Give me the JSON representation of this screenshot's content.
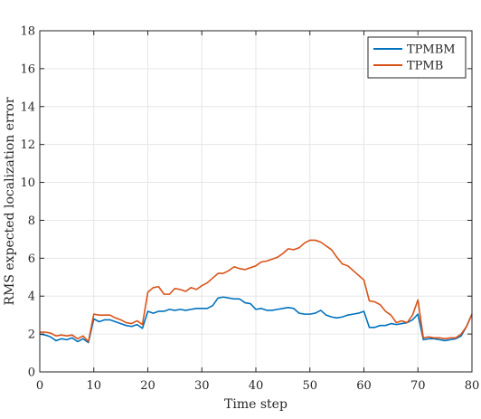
{
  "chart_data": {
    "type": "line",
    "xlabel": "Time step",
    "ylabel": "RMS expected localization error",
    "xlim": [
      0,
      80
    ],
    "ylim": [
      0,
      18
    ],
    "xticks": [
      0,
      10,
      20,
      30,
      40,
      50,
      60,
      70,
      80
    ],
    "yticks": [
      0,
      2,
      4,
      6,
      8,
      10,
      12,
      14,
      16,
      18
    ],
    "grid": true,
    "legend_position": "top-right",
    "series": [
      {
        "name": "TPMBM",
        "color": "#0072BD",
        "x": [
          0,
          1,
          2,
          3,
          4,
          5,
          6,
          7,
          8,
          9,
          10,
          11,
          12,
          13,
          14,
          15,
          16,
          17,
          18,
          19,
          20,
          21,
          22,
          23,
          24,
          25,
          26,
          27,
          28,
          29,
          30,
          31,
          32,
          33,
          34,
          35,
          36,
          37,
          38,
          39,
          40,
          41,
          42,
          43,
          44,
          45,
          46,
          47,
          48,
          49,
          50,
          51,
          52,
          53,
          54,
          55,
          56,
          57,
          58,
          59,
          60,
          61,
          62,
          63,
          64,
          65,
          66,
          67,
          68,
          69,
          70,
          71,
          72,
          73,
          74,
          75,
          76,
          77,
          78,
          79,
          80
        ],
        "y": [
          2.0,
          1.95,
          1.85,
          1.65,
          1.75,
          1.7,
          1.8,
          1.6,
          1.75,
          1.55,
          2.8,
          2.65,
          2.75,
          2.75,
          2.65,
          2.55,
          2.45,
          2.4,
          2.5,
          2.3,
          3.2,
          3.1,
          3.2,
          3.2,
          3.3,
          3.25,
          3.3,
          3.25,
          3.3,
          3.35,
          3.35,
          3.35,
          3.5,
          3.9,
          3.95,
          3.9,
          3.85,
          3.85,
          3.65,
          3.6,
          3.3,
          3.35,
          3.25,
          3.25,
          3.3,
          3.35,
          3.4,
          3.35,
          3.1,
          3.05,
          3.05,
          3.1,
          3.25,
          3.0,
          2.9,
          2.85,
          2.9,
          3.0,
          3.05,
          3.1,
          3.2,
          2.35,
          2.35,
          2.45,
          2.45,
          2.55,
          2.5,
          2.55,
          2.6,
          2.75,
          3.05,
          1.7,
          1.75,
          1.75,
          1.7,
          1.65,
          1.7,
          1.75,
          1.9,
          2.4,
          3.05
        ]
      },
      {
        "name": "TPMB",
        "color": "#D95319",
        "x": [
          0,
          1,
          2,
          3,
          4,
          5,
          6,
          7,
          8,
          9,
          10,
          11,
          12,
          13,
          14,
          15,
          16,
          17,
          18,
          19,
          20,
          21,
          22,
          23,
          24,
          25,
          26,
          27,
          28,
          29,
          30,
          31,
          32,
          33,
          34,
          35,
          36,
          37,
          38,
          39,
          40,
          41,
          42,
          43,
          44,
          45,
          46,
          47,
          48,
          49,
          50,
          51,
          52,
          53,
          54,
          55,
          56,
          57,
          58,
          59,
          60,
          61,
          62,
          63,
          64,
          65,
          66,
          67,
          68,
          69,
          70,
          71,
          72,
          73,
          74,
          75,
          76,
          77,
          78,
          79,
          80
        ],
        "y": [
          2.1,
          2.1,
          2.05,
          1.9,
          1.95,
          1.9,
          1.95,
          1.75,
          1.9,
          1.6,
          3.05,
          3.0,
          3.0,
          3.0,
          2.85,
          2.75,
          2.6,
          2.55,
          2.7,
          2.5,
          4.2,
          4.45,
          4.5,
          4.1,
          4.1,
          4.4,
          4.35,
          4.25,
          4.45,
          4.35,
          4.55,
          4.7,
          4.95,
          5.2,
          5.2,
          5.35,
          5.55,
          5.45,
          5.4,
          5.5,
          5.6,
          5.8,
          5.85,
          5.95,
          6.05,
          6.25,
          6.5,
          6.45,
          6.55,
          6.8,
          6.95,
          6.95,
          6.85,
          6.65,
          6.45,
          6.05,
          5.7,
          5.6,
          5.35,
          5.1,
          4.85,
          3.75,
          3.7,
          3.55,
          3.2,
          3.0,
          2.6,
          2.7,
          2.6,
          3.0,
          3.8,
          1.8,
          1.85,
          1.8,
          1.8,
          1.75,
          1.8,
          1.8,
          2.0,
          2.4,
          3.05
        ]
      }
    ]
  }
}
